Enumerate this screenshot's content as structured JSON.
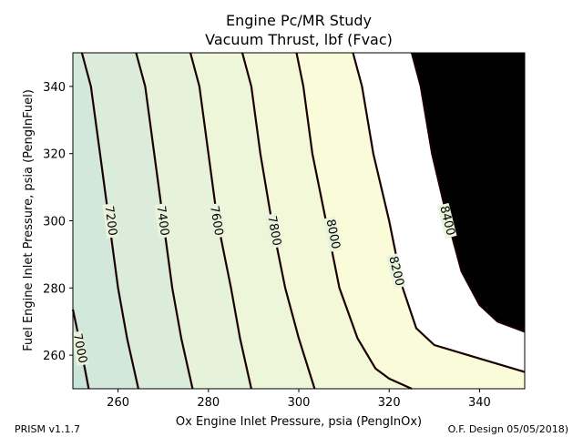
{
  "chart_data": {
    "type": "contour",
    "title": "Engine Pc/MR Study",
    "subtitle": "Vacuum Thrust, lbf (Fvac)",
    "xlabel": "Ox Engine Inlet Pressure, psia (PengInOx)",
    "ylabel": "Fuel Engine Inlet Pressure, psia (PengInFuel)",
    "xlim": [
      250,
      350
    ],
    "ylim": [
      250,
      350
    ],
    "xticks": [
      260,
      280,
      300,
      320,
      340
    ],
    "yticks": [
      260,
      280,
      300,
      320,
      340
    ],
    "grid": false,
    "fill_colors": [
      "#c9e4d8",
      "#d2e8da",
      "#dcecda",
      "#e6f2d9",
      "#eef6d9",
      "#f3f8d9",
      "#f9fbd9",
      "#ffffff"
    ],
    "levels": [
      {
        "value": 7000,
        "label": "7000",
        "points": [
          [
            250,
            273.6
          ],
          [
            251.2,
            266
          ],
          [
            253.5,
            250
          ]
        ],
        "label_at": [
          251.5,
          262
        ]
      },
      {
        "value": 7200,
        "label": "7200",
        "points": [
          [
            252,
            350
          ],
          [
            254,
            340
          ],
          [
            256,
            320
          ],
          [
            258,
            300
          ],
          [
            260,
            280
          ],
          [
            262,
            265
          ],
          [
            264.5,
            250
          ]
        ],
        "label_at": [
          258.3,
          300
        ]
      },
      {
        "value": 7400,
        "label": "7400",
        "points": [
          [
            264,
            350
          ],
          [
            266,
            340
          ],
          [
            268,
            320
          ],
          [
            270,
            300
          ],
          [
            272,
            280
          ],
          [
            274,
            265
          ],
          [
            276.5,
            250
          ]
        ],
        "label_at": [
          269.8,
          300
        ]
      },
      {
        "value": 7600,
        "label": "7600",
        "points": [
          [
            276,
            350
          ],
          [
            278,
            340
          ],
          [
            280,
            320
          ],
          [
            282,
            300
          ],
          [
            285,
            280
          ],
          [
            287,
            265
          ],
          [
            289.5,
            250
          ]
        ],
        "label_at": [
          281.7,
          300
        ]
      },
      {
        "value": 7800,
        "label": "7800",
        "points": [
          [
            287.5,
            350
          ],
          [
            289.5,
            340
          ],
          [
            291.5,
            320
          ],
          [
            294,
            300
          ],
          [
            297,
            280
          ],
          [
            300,
            265
          ],
          [
            303.5,
            250
          ]
        ],
        "label_at": [
          294.5,
          297
        ]
      },
      {
        "value": 8000,
        "label": "8000",
        "points": [
          [
            299.5,
            350
          ],
          [
            301,
            340
          ],
          [
            303,
            320
          ],
          [
            306,
            300
          ],
          [
            309,
            280
          ],
          [
            313,
            265
          ],
          [
            317,
            256
          ],
          [
            320,
            253
          ],
          [
            325,
            250
          ]
        ],
        "label_at": [
          307.5,
          296
        ]
      },
      {
        "value": 8200,
        "label": "8200",
        "points": [
          [
            312,
            350
          ],
          [
            314,
            340
          ],
          [
            316.5,
            320
          ],
          [
            320,
            300
          ],
          [
            323,
            280
          ],
          [
            326,
            268
          ],
          [
            330,
            263
          ],
          [
            340,
            259
          ],
          [
            350,
            255
          ]
        ],
        "label_at": [
          321.5,
          285
        ]
      },
      {
        "value": 8400,
        "label": "8400",
        "points": [
          [
            325,
            350
          ],
          [
            327,
            340
          ],
          [
            329.5,
            320
          ],
          [
            333,
            300
          ],
          [
            336,
            285
          ],
          [
            340,
            275
          ],
          [
            344,
            270
          ],
          [
            350,
            267
          ]
        ],
        "label_at": [
          332.8,
          300
        ]
      }
    ]
  },
  "footer": {
    "left": "PRISM v1.1.7",
    "right": "O.F. Design 05/05/2018)"
  }
}
